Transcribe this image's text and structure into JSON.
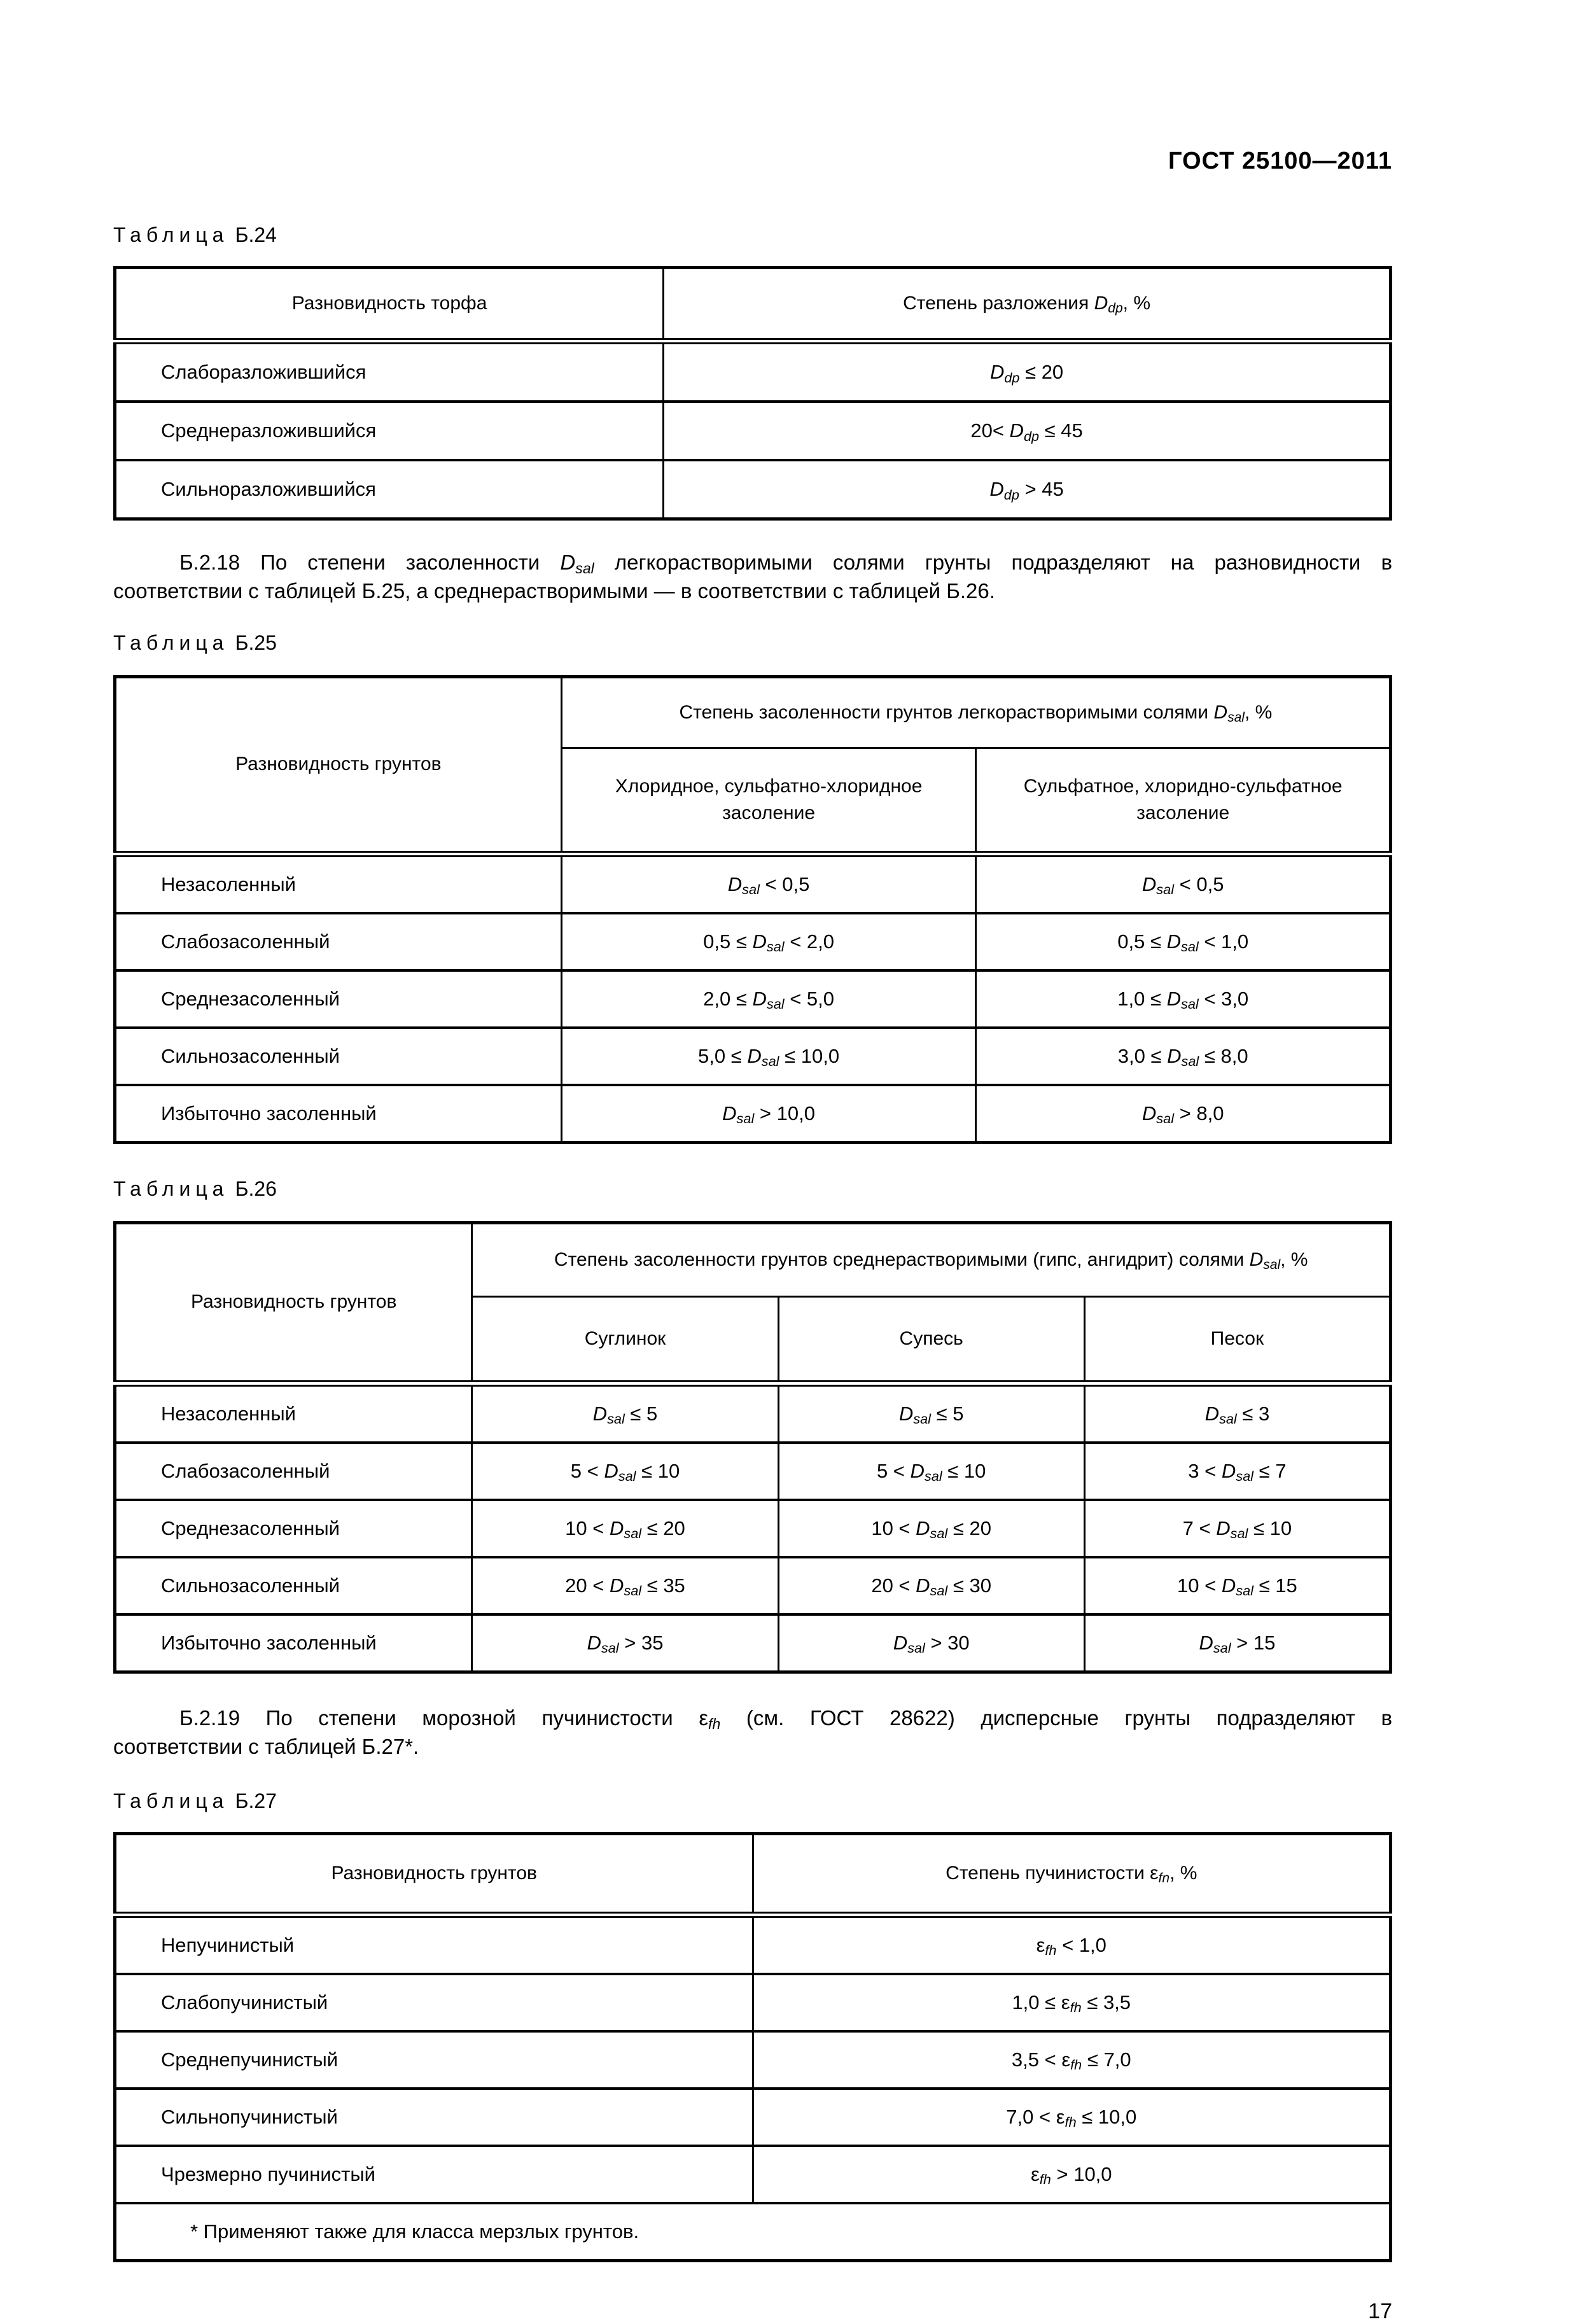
{
  "page": {
    "doc_code": "ГОСТ 25100—2011",
    "page_number": "17"
  },
  "captions": {
    "b24": {
      "word": "Таблица",
      "num": "Б.24"
    },
    "b25": {
      "word": "Таблица",
      "num": "Б.25"
    },
    "b26": {
      "word": "Таблица",
      "num": "Б.26"
    },
    "b27": {
      "word": "Таблица",
      "num": "Б.27"
    }
  },
  "paragraphs": {
    "b218": {
      "line1": [
        {
          "t": "Б.2.18 По степени засоленности "
        },
        {
          "t": "D",
          "i": true
        },
        {
          "t": "sal",
          "i": true,
          "s": true
        },
        {
          "t": " легкорастворимыми солями грунты подразделяют на разновидности в"
        }
      ],
      "line2": [
        {
          "t": "соответствии с таблицей Б.25, а среднерастворимыми — в соответствии с таблицей Б.26."
        }
      ]
    },
    "b219": {
      "line1": [
        {
          "t": "Б.2.19 По степени морозной пучинистости "
        },
        {
          "t": "ε"
        },
        {
          "t": "fh",
          "i": true,
          "s": true
        },
        {
          "t": " (см. ГОСТ 28622) дисперсные грунты подразделяют в"
        }
      ],
      "line2": [
        {
          "t": "соответствии с таблицей Б.27*."
        }
      ]
    }
  },
  "tables": {
    "b24": {
      "col1_header": "Разновидность торфа",
      "col2_header": [
        {
          "t": "Степень разложения "
        },
        {
          "t": "D",
          "i": true
        },
        {
          "t": "dp",
          "i": true,
          "s": true
        },
        {
          "t": ", %"
        }
      ],
      "rows": [
        {
          "name": "Слаборазложившийся",
          "value": [
            {
              "t": "D",
              "i": true
            },
            {
              "t": "dp",
              "i": true,
              "s": true
            },
            {
              "t": " ≤ 20"
            }
          ]
        },
        {
          "name": "Среднеразложившийся",
          "value": [
            {
              "t": "20< "
            },
            {
              "t": "D",
              "i": true
            },
            {
              "t": "dp",
              "i": true,
              "s": true
            },
            {
              "t": " ≤ 45"
            }
          ]
        },
        {
          "name": "Сильноразложившийся",
          "value": [
            {
              "t": "D",
              "i": true
            },
            {
              "t": "dp",
              "i": true,
              "s": true
            },
            {
              "t": " > 45"
            }
          ]
        }
      ]
    },
    "b25": {
      "corner_header": "Разновидность грунтов",
      "span_header": [
        {
          "t": "Степень засоленности грунтов легкорастворимыми солями "
        },
        {
          "t": "D",
          "i": true
        },
        {
          "t": "sal",
          "i": true,
          "s": true
        },
        {
          "t": ", %"
        }
      ],
      "sub_headers": [
        "Хлоридное, сульфатно-хлоридное засоление",
        "Сульфатное, хлоридно-сульфатное засоление"
      ],
      "rows": [
        {
          "name": "Незасоленный",
          "c1": [
            {
              "t": "D",
              "i": true
            },
            {
              "t": "sal",
              "i": true,
              "s": true
            },
            {
              "t": " < 0,5"
            }
          ],
          "c2": [
            {
              "t": "D",
              "i": true
            },
            {
              "t": "sal",
              "i": true,
              "s": true
            },
            {
              "t": " < 0,5"
            }
          ]
        },
        {
          "name": "Слабозасоленный",
          "c1": [
            {
              "t": "0,5 ≤ "
            },
            {
              "t": "D",
              "i": true
            },
            {
              "t": "sal",
              "i": true,
              "s": true
            },
            {
              "t": " < 2,0"
            }
          ],
          "c2": [
            {
              "t": "0,5 ≤ "
            },
            {
              "t": "D",
              "i": true
            },
            {
              "t": "sal",
              "i": true,
              "s": true
            },
            {
              "t": " < 1,0"
            }
          ]
        },
        {
          "name": "Среднезасоленный",
          "c1": [
            {
              "t": "2,0 ≤ "
            },
            {
              "t": "D",
              "i": true
            },
            {
              "t": "sal",
              "i": true,
              "s": true
            },
            {
              "t": " < 5,0"
            }
          ],
          "c2": [
            {
              "t": "1,0 ≤ "
            },
            {
              "t": "D",
              "i": true
            },
            {
              "t": "sal",
              "i": true,
              "s": true
            },
            {
              "t": " < 3,0"
            }
          ]
        },
        {
          "name": "Сильнозасоленный",
          "c1": [
            {
              "t": "5,0 ≤ "
            },
            {
              "t": "D",
              "i": true
            },
            {
              "t": "sal",
              "i": true,
              "s": true
            },
            {
              "t": " ≤ 10,0"
            }
          ],
          "c2": [
            {
              "t": "3,0 ≤ "
            },
            {
              "t": "D",
              "i": true
            },
            {
              "t": "sal",
              "i": true,
              "s": true
            },
            {
              "t": " ≤ 8,0"
            }
          ]
        },
        {
          "name": "Избыточно засоленный",
          "c1": [
            {
              "t": "D",
              "i": true
            },
            {
              "t": "sal",
              "i": true,
              "s": true
            },
            {
              "t": " > 10,0"
            }
          ],
          "c2": [
            {
              "t": "D",
              "i": true
            },
            {
              "t": "sal",
              "i": true,
              "s": true
            },
            {
              "t": " > 8,0"
            }
          ]
        }
      ]
    },
    "b26": {
      "corner_header": "Разновидность грунтов",
      "span_header": [
        {
          "t": "Степень засоленности грунтов среднерастворимыми (гипс, ангидрит) солями "
        },
        {
          "t": "D",
          "i": true
        },
        {
          "t": "sal",
          "i": true,
          "s": true
        },
        {
          "t": ", %"
        }
      ],
      "sub_headers": [
        "Суглинок",
        "Супесь",
        "Песок"
      ],
      "rows": [
        {
          "name": "Незасоленный",
          "c1": [
            {
              "t": "D",
              "i": true
            },
            {
              "t": "sal",
              "i": true,
              "s": true
            },
            {
              "t": " ≤ 5"
            }
          ],
          "c2": [
            {
              "t": "D",
              "i": true
            },
            {
              "t": "sal",
              "i": true,
              "s": true
            },
            {
              "t": " ≤ 5"
            }
          ],
          "c3": [
            {
              "t": "D",
              "i": true
            },
            {
              "t": "sal",
              "i": true,
              "s": true
            },
            {
              "t": " ≤ 3"
            }
          ]
        },
        {
          "name": "Слабозасоленный",
          "c1": [
            {
              "t": "5 < "
            },
            {
              "t": "D",
              "i": true
            },
            {
              "t": "sal",
              "i": true,
              "s": true
            },
            {
              "t": " ≤ 10"
            }
          ],
          "c2": [
            {
              "t": "5 < "
            },
            {
              "t": "D",
              "i": true
            },
            {
              "t": "sal",
              "i": true,
              "s": true
            },
            {
              "t": " ≤ 10"
            }
          ],
          "c3": [
            {
              "t": "3 < "
            },
            {
              "t": "D",
              "i": true
            },
            {
              "t": "sal",
              "i": true,
              "s": true
            },
            {
              "t": " ≤ 7"
            }
          ]
        },
        {
          "name": "Среднезасоленный",
          "c1": [
            {
              "t": "10 < "
            },
            {
              "t": "D",
              "i": true
            },
            {
              "t": "sal",
              "i": true,
              "s": true
            },
            {
              "t": " ≤ 20"
            }
          ],
          "c2": [
            {
              "t": "10 < "
            },
            {
              "t": "D",
              "i": true
            },
            {
              "t": "sal",
              "i": true,
              "s": true
            },
            {
              "t": " ≤ 20"
            }
          ],
          "c3": [
            {
              "t": "7 < "
            },
            {
              "t": "D",
              "i": true
            },
            {
              "t": "sal",
              "i": true,
              "s": true
            },
            {
              "t": " ≤ 10"
            }
          ]
        },
        {
          "name": "Сильнозасоленный",
          "c1": [
            {
              "t": "20 < "
            },
            {
              "t": "D",
              "i": true
            },
            {
              "t": "sal",
              "i": true,
              "s": true
            },
            {
              "t": " ≤ 35"
            }
          ],
          "c2": [
            {
              "t": "20 < "
            },
            {
              "t": "D",
              "i": true
            },
            {
              "t": "sal",
              "i": true,
              "s": true
            },
            {
              "t": " ≤ 30"
            }
          ],
          "c3": [
            {
              "t": "10 < "
            },
            {
              "t": "D",
              "i": true
            },
            {
              "t": "sal",
              "i": true,
              "s": true
            },
            {
              "t": " ≤ 15"
            }
          ]
        },
        {
          "name": "Избыточно засоленный",
          "c1": [
            {
              "t": "D",
              "i": true
            },
            {
              "t": "sal",
              "i": true,
              "s": true
            },
            {
              "t": " > 35"
            }
          ],
          "c2": [
            {
              "t": "D",
              "i": true
            },
            {
              "t": "sal",
              "i": true,
              "s": true
            },
            {
              "t": " > 30"
            }
          ],
          "c3": [
            {
              "t": "D",
              "i": true
            },
            {
              "t": "sal",
              "i": true,
              "s": true
            },
            {
              "t": " > 15"
            }
          ]
        }
      ]
    },
    "b27": {
      "col1_header": "Разновидность грунтов",
      "col2_header": [
        {
          "t": "Степень пучинистости "
        },
        {
          "t": "ε"
        },
        {
          "t": "fn",
          "i": true,
          "s": true
        },
        {
          "t": ", %"
        }
      ],
      "rows": [
        {
          "name": "Непучинистый",
          "value": [
            {
              "t": "ε"
            },
            {
              "t": "fh",
              "i": true,
              "s": true
            },
            {
              "t": " < 1,0"
            }
          ]
        },
        {
          "name": "Слабопучинистый",
          "value": [
            {
              "t": "1,0 ≤ "
            },
            {
              "t": "ε"
            },
            {
              "t": "fh",
              "i": true,
              "s": true
            },
            {
              "t": " ≤ 3,5"
            }
          ]
        },
        {
          "name": "Среднепучинистый",
          "value": [
            {
              "t": "3,5 < "
            },
            {
              "t": "ε"
            },
            {
              "t": "fh",
              "i": true,
              "s": true
            },
            {
              "t": " ≤ 7,0"
            }
          ]
        },
        {
          "name": "Сильнопучинистый",
          "value": [
            {
              "t": "7,0 < "
            },
            {
              "t": "ε"
            },
            {
              "t": "fh",
              "i": true,
              "s": true
            },
            {
              "t": " ≤ 10,0"
            }
          ]
        },
        {
          "name": "Чрезмерно пучинистый",
          "value": [
            {
              "t": "ε"
            },
            {
              "t": "fh",
              "i": true,
              "s": true
            },
            {
              "t": " > 10,0"
            }
          ]
        }
      ],
      "footnote": "* Применяют также для класса мерзлых грунтов."
    }
  }
}
